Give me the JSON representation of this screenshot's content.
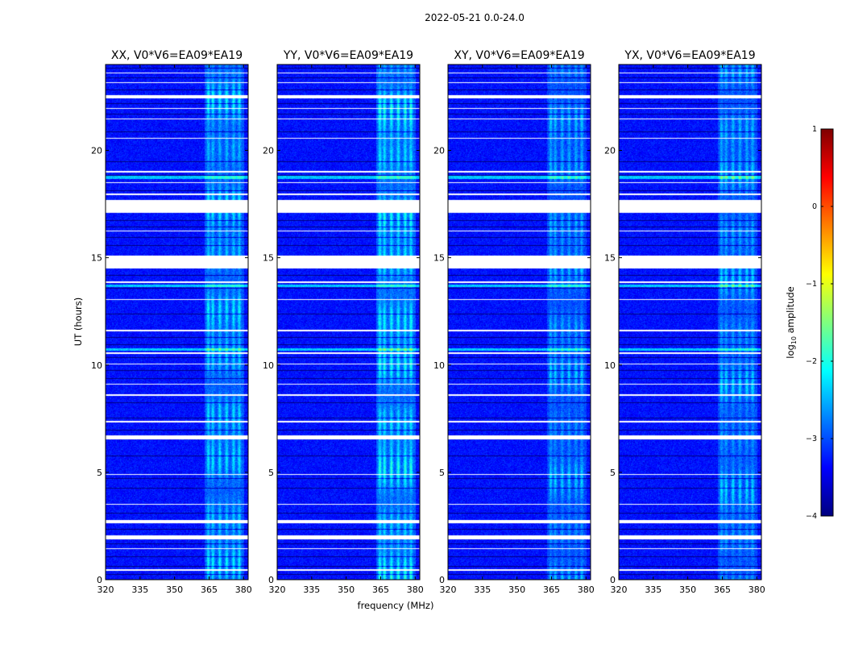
{
  "chart_data": {
    "type": "heatmap",
    "title": "2022-05-21 0.0-24.0",
    "xlabel": "frequency (MHz)",
    "ylabel": "UT (hours)",
    "xlim": [
      320,
      382
    ],
    "ylim": [
      0,
      24
    ],
    "xticks": [
      320,
      335,
      350,
      365,
      380
    ],
    "xtick_labels": [
      "320",
      "335",
      "350",
      "365",
      "380"
    ],
    "yticks": [
      0,
      5,
      10,
      15,
      20
    ],
    "ytick_labels": [
      "0",
      "5",
      "10",
      "15",
      "20"
    ],
    "colorbar": {
      "label_main": "log",
      "label_sub": "10",
      "label_suffix": " amplitude",
      "range": [
        -4,
        1
      ],
      "ticks": [
        1,
        0,
        -1,
        -2,
        -3,
        -4
      ],
      "tick_labels": [
        "1",
        "0",
        "−1",
        "−2",
        "−3",
        "−4"
      ],
      "colors": [
        "#00007f",
        "#0000ff",
        "#007fff",
        "#00ffff",
        "#7fff7f",
        "#ffff00",
        "#ff7f00",
        "#ff0000",
        "#7f0000"
      ]
    },
    "panels": [
      {
        "title": "XX, V0*V6=EA09*EA19",
        "rfi_strength": 1.0
      },
      {
        "title": "YY, V0*V6=EA09*EA19",
        "rfi_strength": 1.15
      },
      {
        "title": "XY, V0*V6=EA09*EA19",
        "rfi_strength": 0.8
      },
      {
        "title": "YX, V0*V6=EA09*EA19",
        "rfi_strength": 0.85
      }
    ],
    "background_level": -3.3,
    "rfi_band_MHz": [
      363,
      380
    ],
    "rfi_channels_MHz": [
      364.5,
      366.5,
      369.5,
      372.5,
      375.5,
      378
    ],
    "flagged_time_ranges_h": [
      [
        17.1,
        17.7
      ],
      [
        14.5,
        15.1
      ],
      [
        6.55,
        6.75
      ],
      [
        22.45,
        22.6
      ],
      [
        1.9,
        2.1
      ],
      [
        2.65,
        2.8
      ],
      [
        0.45,
        0.5
      ],
      [
        1.45,
        1.5
      ],
      [
        3.5,
        3.55
      ],
      [
        4.9,
        4.95
      ],
      [
        7.35,
        7.4
      ],
      [
        8.6,
        8.65
      ],
      [
        9.1,
        9.15
      ],
      [
        10.05,
        10.1
      ],
      [
        10.55,
        10.6
      ],
      [
        11.6,
        11.65
      ],
      [
        13.05,
        13.1
      ],
      [
        13.85,
        13.9
      ],
      [
        16.25,
        16.3
      ],
      [
        17.95,
        18.0
      ],
      [
        18.5,
        18.55
      ],
      [
        19.0,
        19.05
      ],
      [
        20.55,
        20.6
      ],
      [
        21.45,
        21.5
      ],
      [
        21.95,
        22.0
      ],
      [
        23.15,
        23.2
      ],
      [
        23.6,
        23.65
      ]
    ],
    "dark_time_lines_h": [
      0.25,
      0.65,
      1.1,
      1.7,
      2.35,
      3.1,
      4.3,
      4.75,
      5.8,
      7.0,
      7.55,
      8.25,
      9.4,
      9.75,
      10.35,
      10.95,
      11.3,
      12.4,
      13.6,
      14.2,
      15.6,
      15.95,
      16.45,
      16.75,
      18.15,
      18.85,
      19.5,
      20.9,
      21.7,
      22.2,
      22.85,
      23.4,
      23.85
    ],
    "bright_time_bands_h": [
      [
        18.7,
        18.85
      ],
      [
        13.65,
        13.75
      ],
      [
        10.7,
        10.8
      ]
    ]
  }
}
